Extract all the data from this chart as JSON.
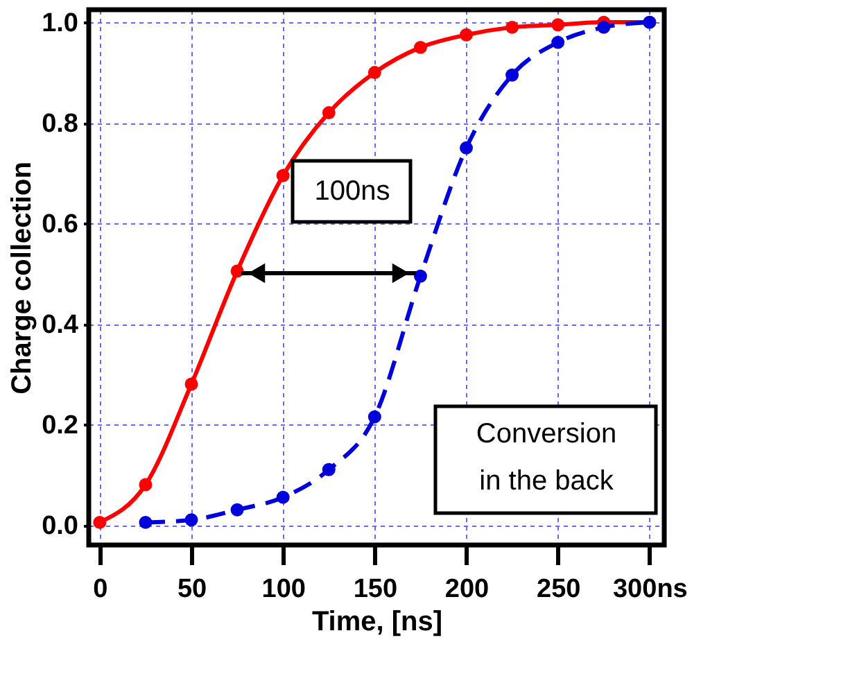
{
  "chart_data": {
    "type": "line",
    "xlabel": "Time, [ns]",
    "ylabel": "Charge collection",
    "x": [
      0,
      25,
      50,
      75,
      100,
      125,
      150,
      175,
      200,
      225,
      250,
      275,
      300
    ],
    "series": [
      {
        "color": "#ff0000",
        "line_style": "solid",
        "values": [
          0.005,
          0.08,
          0.28,
          0.505,
          0.695,
          0.82,
          0.9,
          0.95,
          0.975,
          0.99,
          0.995,
          1.0,
          1.0
        ]
      },
      {
        "color": "#0000dd",
        "line_style": "dashed",
        "x": [
          25,
          50,
          75,
          100,
          125,
          150,
          175,
          200,
          225,
          250,
          275,
          300
        ],
        "values": [
          0.005,
          0.01,
          0.03,
          0.055,
          0.11,
          0.215,
          0.495,
          0.75,
          0.895,
          0.96,
          0.99,
          1.0
        ]
      }
    ],
    "xlim": [
      -6,
      308
    ],
    "ylim": [
      -0.04,
      1.025
    ],
    "xticks": [
      0,
      50,
      100,
      150,
      200,
      250,
      {
        "value": 300,
        "label": "300ns"
      }
    ],
    "yticks": [
      {
        "value": 0,
        "label": "0.0"
      },
      {
        "value": 0.2,
        "label": "0.2"
      },
      {
        "value": 0.4,
        "label": "0.4"
      },
      {
        "value": 0.6,
        "label": "0.6"
      },
      {
        "value": 0.8,
        "label": "0.8"
      },
      {
        "value": 1,
        "label": "1.0"
      }
    ],
    "grid": true,
    "marker": "circle",
    "annotations": [
      "100ns",
      "Conversion\nin the back"
    ]
  }
}
